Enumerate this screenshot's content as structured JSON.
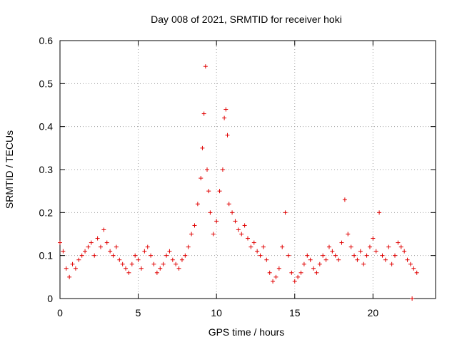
{
  "chart_data": {
    "type": "scatter",
    "title": "Day 008 of 2021, SRMTID for receiver hoki",
    "xlabel": "GPS time / hours",
    "ylabel": "SRMTID / TECUs",
    "xlim": [
      0,
      24
    ],
    "ylim": [
      0,
      0.6
    ],
    "x_ticks": [
      0,
      5,
      10,
      15,
      20
    ],
    "x_tick_labels": [
      "0",
      "5",
      "10",
      "15",
      "20"
    ],
    "y_ticks": [
      0,
      0.1,
      0.2,
      0.3,
      0.4,
      0.5,
      0.6
    ],
    "y_tick_labels": [
      "0",
      "0.1",
      "0.2",
      "0.3",
      "0.4",
      "0.5",
      "0.6"
    ],
    "grid": true,
    "marker": "+",
    "color": "#e00000",
    "series": [
      {
        "name": "SRMTID",
        "x": [
          0.0,
          0.2,
          0.4,
          0.6,
          0.8,
          1.0,
          1.2,
          1.4,
          1.6,
          1.8,
          2.0,
          2.2,
          2.4,
          2.6,
          2.8,
          3.0,
          3.2,
          3.4,
          3.6,
          3.8,
          4.0,
          4.2,
          4.4,
          4.6,
          4.8,
          5.0,
          5.2,
          5.4,
          5.6,
          5.8,
          6.0,
          6.2,
          6.4,
          6.6,
          6.8,
          7.0,
          7.2,
          7.4,
          7.6,
          7.8,
          8.0,
          8.2,
          8.4,
          8.6,
          8.8,
          9.0,
          9.1,
          9.2,
          9.3,
          9.4,
          9.5,
          9.6,
          9.8,
          10.0,
          10.2,
          10.4,
          10.5,
          10.6,
          10.7,
          10.8,
          11.0,
          11.2,
          11.4,
          11.6,
          11.8,
          12.0,
          12.2,
          12.4,
          12.6,
          12.8,
          13.0,
          13.2,
          13.4,
          13.6,
          13.8,
          14.0,
          14.2,
          14.4,
          14.6,
          14.8,
          15.0,
          15.2,
          15.4,
          15.6,
          15.8,
          16.0,
          16.2,
          16.4,
          16.6,
          16.8,
          17.0,
          17.2,
          17.4,
          17.6,
          17.8,
          18.0,
          18.2,
          18.4,
          18.6,
          18.8,
          19.0,
          19.2,
          19.4,
          19.6,
          19.8,
          20.0,
          20.2,
          20.4,
          20.6,
          20.8,
          21.0,
          21.2,
          21.4,
          21.6,
          21.8,
          22.0,
          22.2,
          22.4,
          22.6,
          22.8,
          22.5
        ],
        "values": [
          0.13,
          0.11,
          0.07,
          0.05,
          0.08,
          0.07,
          0.09,
          0.1,
          0.11,
          0.12,
          0.13,
          0.1,
          0.14,
          0.12,
          0.16,
          0.13,
          0.11,
          0.1,
          0.12,
          0.09,
          0.08,
          0.07,
          0.06,
          0.08,
          0.1,
          0.09,
          0.07,
          0.11,
          0.12,
          0.1,
          0.08,
          0.06,
          0.07,
          0.08,
          0.1,
          0.11,
          0.09,
          0.08,
          0.07,
          0.09,
          0.1,
          0.12,
          0.15,
          0.17,
          0.22,
          0.28,
          0.35,
          0.43,
          0.54,
          0.3,
          0.25,
          0.2,
          0.15,
          0.18,
          0.25,
          0.3,
          0.42,
          0.44,
          0.38,
          0.22,
          0.2,
          0.18,
          0.16,
          0.15,
          0.17,
          0.14,
          0.12,
          0.13,
          0.11,
          0.1,
          0.12,
          0.09,
          0.06,
          0.04,
          0.05,
          0.07,
          0.12,
          0.2,
          0.1,
          0.06,
          0.04,
          0.05,
          0.06,
          0.08,
          0.1,
          0.09,
          0.07,
          0.06,
          0.08,
          0.1,
          0.09,
          0.12,
          0.11,
          0.1,
          0.09,
          0.13,
          0.23,
          0.15,
          0.12,
          0.1,
          0.09,
          0.11,
          0.08,
          0.1,
          0.12,
          0.14,
          0.11,
          0.2,
          0.1,
          0.09,
          0.12,
          0.08,
          0.1,
          0.13,
          0.12,
          0.11,
          0.09,
          0.08,
          0.07,
          0.06,
          0.0
        ]
      }
    ]
  }
}
